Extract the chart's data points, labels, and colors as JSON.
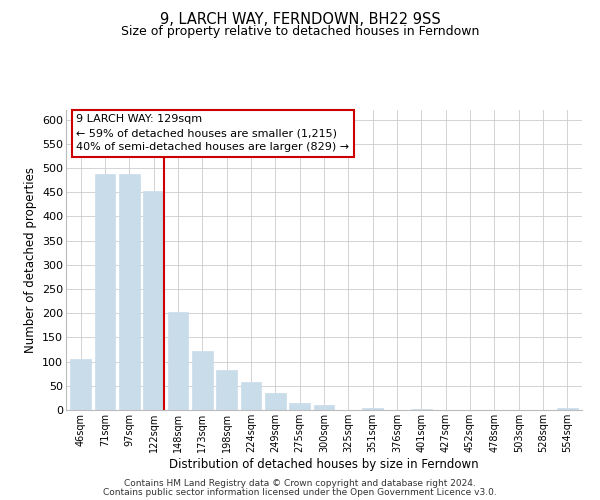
{
  "title": "9, LARCH WAY, FERNDOWN, BH22 9SS",
  "subtitle": "Size of property relative to detached houses in Ferndown",
  "xlabel": "Distribution of detached houses by size in Ferndown",
  "ylabel": "Number of detached properties",
  "bar_labels": [
    "46sqm",
    "71sqm",
    "97sqm",
    "122sqm",
    "148sqm",
    "173sqm",
    "198sqm",
    "224sqm",
    "249sqm",
    "275sqm",
    "300sqm",
    "325sqm",
    "351sqm",
    "376sqm",
    "401sqm",
    "427sqm",
    "452sqm",
    "478sqm",
    "503sqm",
    "528sqm",
    "554sqm"
  ],
  "bar_values": [
    105,
    487,
    487,
    453,
    202,
    121,
    83,
    57,
    36,
    15,
    10,
    0,
    5,
    0,
    3,
    0,
    0,
    0,
    0,
    0,
    5
  ],
  "bar_color": "#c9dcea",
  "vline_x_index": 3,
  "vline_color": "#cc0000",
  "annotation_title": "9 LARCH WAY: 129sqm",
  "annotation_line1": "← 59% of detached houses are smaller (1,215)",
  "annotation_line2": "40% of semi-detached houses are larger (829) →",
  "footer1": "Contains HM Land Registry data © Crown copyright and database right 2024.",
  "footer2": "Contains public sector information licensed under the Open Government Licence v3.0.",
  "ylim": [
    0,
    620
  ],
  "yticks": [
    0,
    50,
    100,
    150,
    200,
    250,
    300,
    350,
    400,
    450,
    500,
    550,
    600
  ],
  "figsize": [
    6.0,
    5.0
  ],
  "dpi": 100
}
